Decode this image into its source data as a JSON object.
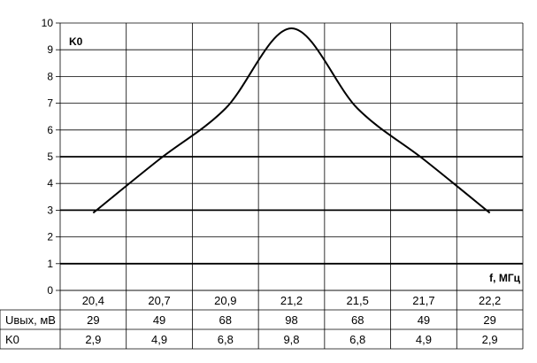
{
  "chart_data": {
    "type": "line",
    "y_axis_label": "K0",
    "x_axis_label": "f, МГц",
    "ylim": [
      0,
      10
    ],
    "yticks": [
      "0",
      "1",
      "2",
      "3",
      "4",
      "5",
      "6",
      "7",
      "8",
      "9",
      "10"
    ],
    "grid": true,
    "x": [
      20.4,
      20.7,
      20.9,
      21.2,
      21.5,
      21.7,
      22.2
    ],
    "categories": [
      "20,4",
      "20,7",
      "20,9",
      "21,2",
      "21,5",
      "21,7",
      "22,2"
    ],
    "series": [
      {
        "values": [
          2.9,
          4.9,
          6.8,
          9.8,
          6.8,
          4.9,
          2.9
        ]
      }
    ],
    "table": {
      "rows": [
        {
          "label": "Uвых, мВ",
          "values": [
            "29",
            "49",
            "68",
            "98",
            "68",
            "49",
            "29"
          ]
        },
        {
          "label": "K0",
          "values": [
            "2,9",
            "4,9",
            "6,8",
            "9,8",
            "6,8",
            "4,9",
            "2,9"
          ]
        }
      ]
    }
  }
}
